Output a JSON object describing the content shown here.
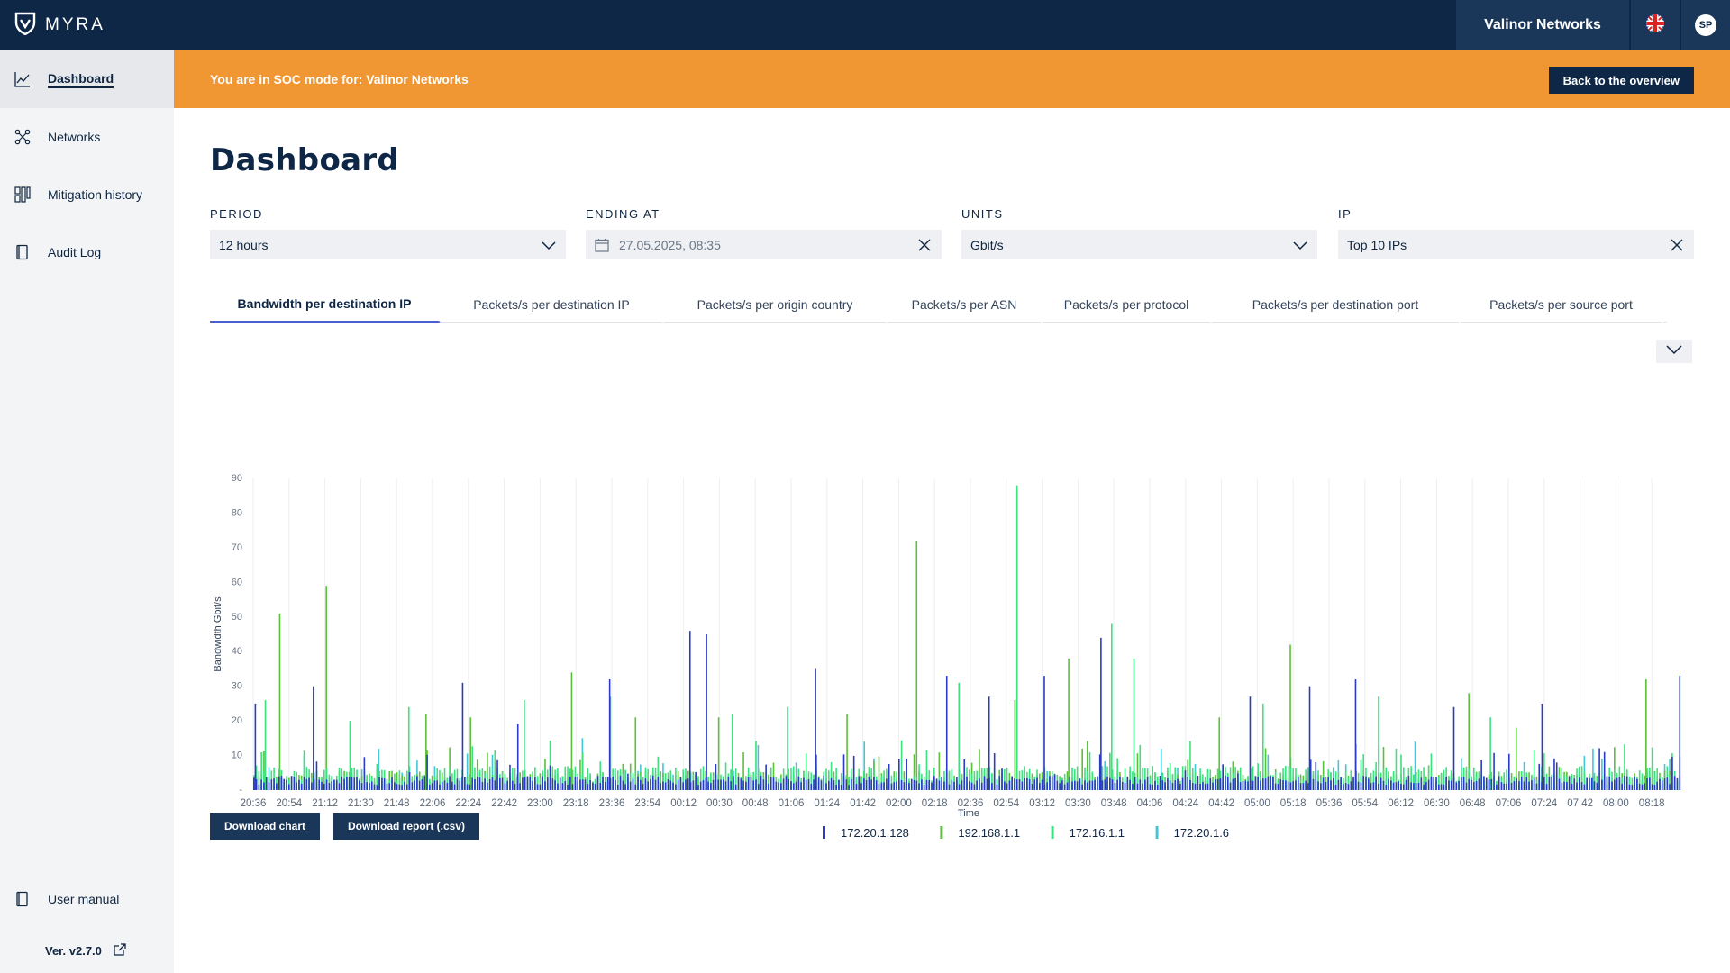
{
  "header": {
    "brand": "MYRA",
    "tenant": "Valinor Networks",
    "avatar_initials": "SP",
    "language_icon": "uk-flag-icon"
  },
  "sidebar": {
    "items": [
      {
        "label": "Dashboard",
        "icon": "chart-line-icon",
        "active": true
      },
      {
        "label": "Networks",
        "icon": "network-icon",
        "active": false
      },
      {
        "label": "Mitigation history",
        "icon": "mitigation-icon",
        "active": false
      },
      {
        "label": "Audit Log",
        "icon": "document-icon",
        "active": false
      }
    ],
    "user_manual": "User manual",
    "version": "Ver. v2.7.0"
  },
  "banner": {
    "text": "You are in SOC mode for: Valinor Networks",
    "button": "Back to the overview"
  },
  "page": {
    "title": "Dashboard"
  },
  "filters": {
    "period": {
      "label": "PERIOD",
      "value": "12 hours"
    },
    "ending_at": {
      "label": "ENDING AT",
      "value": "27.05.2025, 08:35"
    },
    "units": {
      "label": "UNITS",
      "value": "Gbit/s"
    },
    "ip": {
      "label": "IP",
      "value": "Top 10 IPs"
    }
  },
  "tabs": [
    {
      "label": "Bandwidth per destination IP",
      "active": true
    },
    {
      "label": "Packets/s per destination IP",
      "active": false
    },
    {
      "label": "Packets/s per origin country",
      "active": false
    },
    {
      "label": "Packets/s per ASN",
      "active": false
    },
    {
      "label": "Packets/s per protocol",
      "active": false
    },
    {
      "label": "Packets/s per destination port",
      "active": false
    },
    {
      "label": "Packets/s per source port",
      "active": false
    }
  ],
  "chart_data": {
    "type": "bar",
    "xlabel": "Time",
    "ylabel": "Bandwidth Gbit/s",
    "ylim": [
      0,
      90
    ],
    "y_ticks": [
      "-",
      "10",
      "20",
      "30",
      "40",
      "50",
      "60",
      "70",
      "80",
      "90"
    ],
    "x_ticks": [
      "20:36",
      "20:54",
      "21:12",
      "21:30",
      "21:48",
      "22:06",
      "22:24",
      "22:42",
      "23:00",
      "23:18",
      "23:36",
      "23:54",
      "00:12",
      "00:30",
      "00:48",
      "01:06",
      "01:24",
      "01:42",
      "02:00",
      "02:18",
      "02:36",
      "02:54",
      "03:12",
      "03:30",
      "03:48",
      "04:06",
      "04:24",
      "04:42",
      "05:00",
      "05:18",
      "05:36",
      "05:54",
      "06:12",
      "06:30",
      "06:48",
      "07:06",
      "07:24",
      "07:42",
      "08:00",
      "08:18"
    ],
    "grid": true,
    "legend_position": "bottom-center",
    "series": [
      {
        "name": "172.20.1.128",
        "color": "#2b3bc4",
        "baseline": 3,
        "spikes": [
          [
            0.2,
            25
          ],
          [
            8.3,
            30
          ],
          [
            29.1,
            31
          ],
          [
            36.8,
            19
          ],
          [
            49.6,
            32
          ],
          [
            60.8,
            46
          ],
          [
            63.1,
            45
          ],
          [
            78.3,
            35
          ],
          [
            96.6,
            33
          ],
          [
            102.5,
            27
          ],
          [
            110.2,
            33
          ],
          [
            118.1,
            44
          ],
          [
            138.9,
            27
          ],
          [
            147.2,
            30
          ],
          [
            153.6,
            32
          ],
          [
            167.3,
            24
          ],
          [
            179.6,
            25
          ],
          [
            198.8,
            33
          ]
        ]
      },
      {
        "name": "192.168.1.1",
        "color": "#5cc03a",
        "baseline": 4,
        "spikes": [
          [
            3.6,
            51
          ],
          [
            10.1,
            59
          ],
          [
            24.0,
            22
          ],
          [
            30.2,
            21
          ],
          [
            44.3,
            34
          ],
          [
            53.2,
            21
          ],
          [
            64.8,
            21
          ],
          [
            82.7,
            22
          ],
          [
            92.4,
            72
          ],
          [
            106.1,
            26
          ],
          [
            113.6,
            38
          ],
          [
            134.6,
            21
          ],
          [
            144.5,
            42
          ],
          [
            169.4,
            28
          ],
          [
            176.0,
            18
          ],
          [
            194.1,
            32
          ]
        ]
      },
      {
        "name": "172.16.1.1",
        "color": "#3fe07f",
        "baseline": 5,
        "spikes": [
          [
            1.6,
            26
          ],
          [
            13.4,
            20
          ],
          [
            21.6,
            24
          ],
          [
            37.7,
            26
          ],
          [
            49.7,
            27
          ],
          [
            66.7,
            22
          ],
          [
            74.4,
            24
          ],
          [
            98.3,
            31
          ],
          [
            106.4,
            88
          ],
          [
            119.6,
            48
          ],
          [
            122.7,
            38
          ],
          [
            140.7,
            25
          ],
          [
            156.8,
            27
          ],
          [
            172.4,
            21
          ],
          [
            199.9,
            30
          ]
        ]
      },
      {
        "name": "172.20.1.6",
        "color": "#45c6d8",
        "baseline": 2,
        "spikes": [
          [
            17.4,
            12
          ],
          [
            45.8,
            15
          ],
          [
            70.3,
            13
          ],
          [
            85.1,
            14
          ],
          [
            126.5,
            12
          ],
          [
            161.9,
            14
          ],
          [
            186.7,
            12
          ]
        ]
      }
    ]
  },
  "actions": {
    "download_chart": "Download chart",
    "download_report": "Download report (.csv)"
  }
}
